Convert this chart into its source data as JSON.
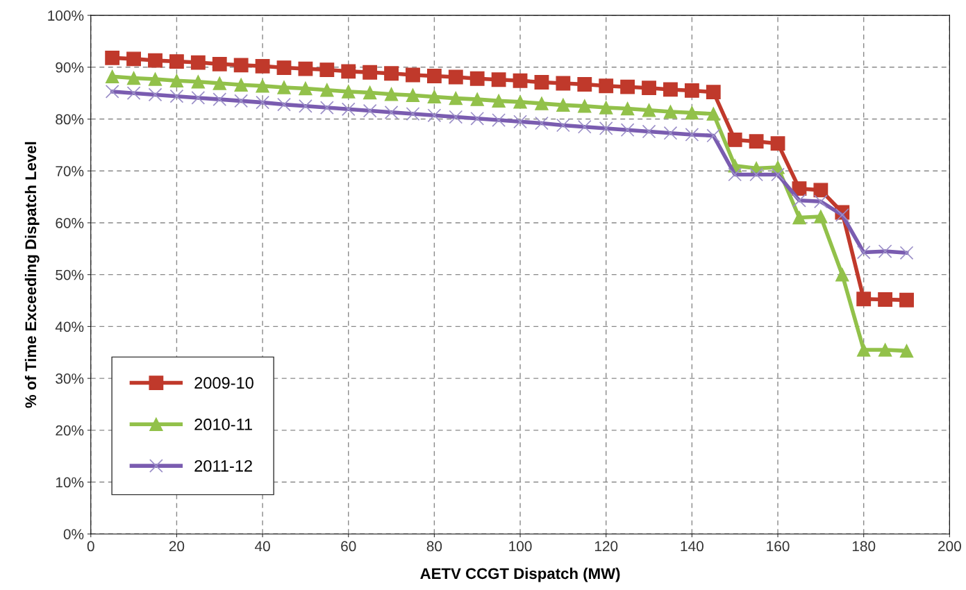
{
  "chart_data": {
    "type": "line",
    "xlabel": "AETV CCGT Dispatch (MW)",
    "ylabel": "% of Time Exceeding Dispatch Level",
    "x": [
      5,
      10,
      15,
      20,
      25,
      30,
      35,
      40,
      45,
      50,
      55,
      60,
      65,
      70,
      75,
      80,
      85,
      90,
      95,
      100,
      105,
      110,
      115,
      120,
      125,
      130,
      135,
      140,
      145,
      150,
      155,
      160,
      165,
      170,
      175,
      180,
      185,
      190
    ],
    "series": [
      {
        "name": "2009-10",
        "color": "#c0392b",
        "marker": "square",
        "values": [
          91.8,
          91.6,
          91.3,
          91.1,
          90.9,
          90.6,
          90.4,
          90.2,
          89.9,
          89.7,
          89.5,
          89.2,
          89.0,
          88.8,
          88.5,
          88.3,
          88.1,
          87.8,
          87.6,
          87.4,
          87.1,
          86.9,
          86.7,
          86.4,
          86.2,
          86.0,
          85.7,
          85.5,
          85.2,
          76.0,
          75.7,
          75.3,
          66.6,
          66.3,
          62.0,
          45.3,
          45.2,
          45.1
        ]
      },
      {
        "name": "2010-11",
        "color": "#92c14a",
        "marker": "triangle",
        "values": [
          88.2,
          87.9,
          87.7,
          87.4,
          87.2,
          86.9,
          86.6,
          86.4,
          86.1,
          85.9,
          85.6,
          85.3,
          85.1,
          84.8,
          84.6,
          84.3,
          84.0,
          83.8,
          83.5,
          83.3,
          83.0,
          82.7,
          82.5,
          82.2,
          82.0,
          81.7,
          81.4,
          81.2,
          81.0,
          71.0,
          70.5,
          70.7,
          61.0,
          61.2,
          50.0,
          35.5,
          35.5,
          35.3
        ]
      },
      {
        "name": "2011-12",
        "color": "#7a5cb0",
        "marker": "cross",
        "values": [
          85.3,
          85.0,
          84.7,
          84.4,
          84.1,
          83.8,
          83.5,
          83.2,
          82.8,
          82.5,
          82.2,
          81.9,
          81.6,
          81.3,
          81.0,
          80.7,
          80.4,
          80.1,
          79.8,
          79.5,
          79.2,
          78.8,
          78.5,
          78.2,
          77.9,
          77.6,
          77.3,
          77.0,
          76.8,
          69.3,
          69.3,
          69.3,
          64.3,
          64.1,
          61.5,
          54.3,
          54.5,
          54.2
        ]
      }
    ],
    "xlim": [
      0,
      200
    ],
    "xticks": [
      0,
      20,
      40,
      60,
      80,
      100,
      120,
      140,
      160,
      180,
      200
    ],
    "ylim": [
      0,
      100
    ],
    "yticks": [
      {
        "value": 0,
        "label": "0%"
      },
      {
        "value": 10,
        "label": "10%"
      },
      {
        "value": 20,
        "label": "20%"
      },
      {
        "value": 30,
        "label": "30%"
      },
      {
        "value": 40,
        "label": "40%"
      },
      {
        "value": 50,
        "label": "50%"
      },
      {
        "value": 60,
        "label": "60%"
      },
      {
        "value": 70,
        "label": "70%"
      },
      {
        "value": 80,
        "label": "80%"
      },
      {
        "value": 90,
        "label": "90%"
      },
      {
        "value": 100,
        "label": "100%"
      }
    ],
    "grid": true,
    "legend": "lower left",
    "line_style": "solid"
  }
}
